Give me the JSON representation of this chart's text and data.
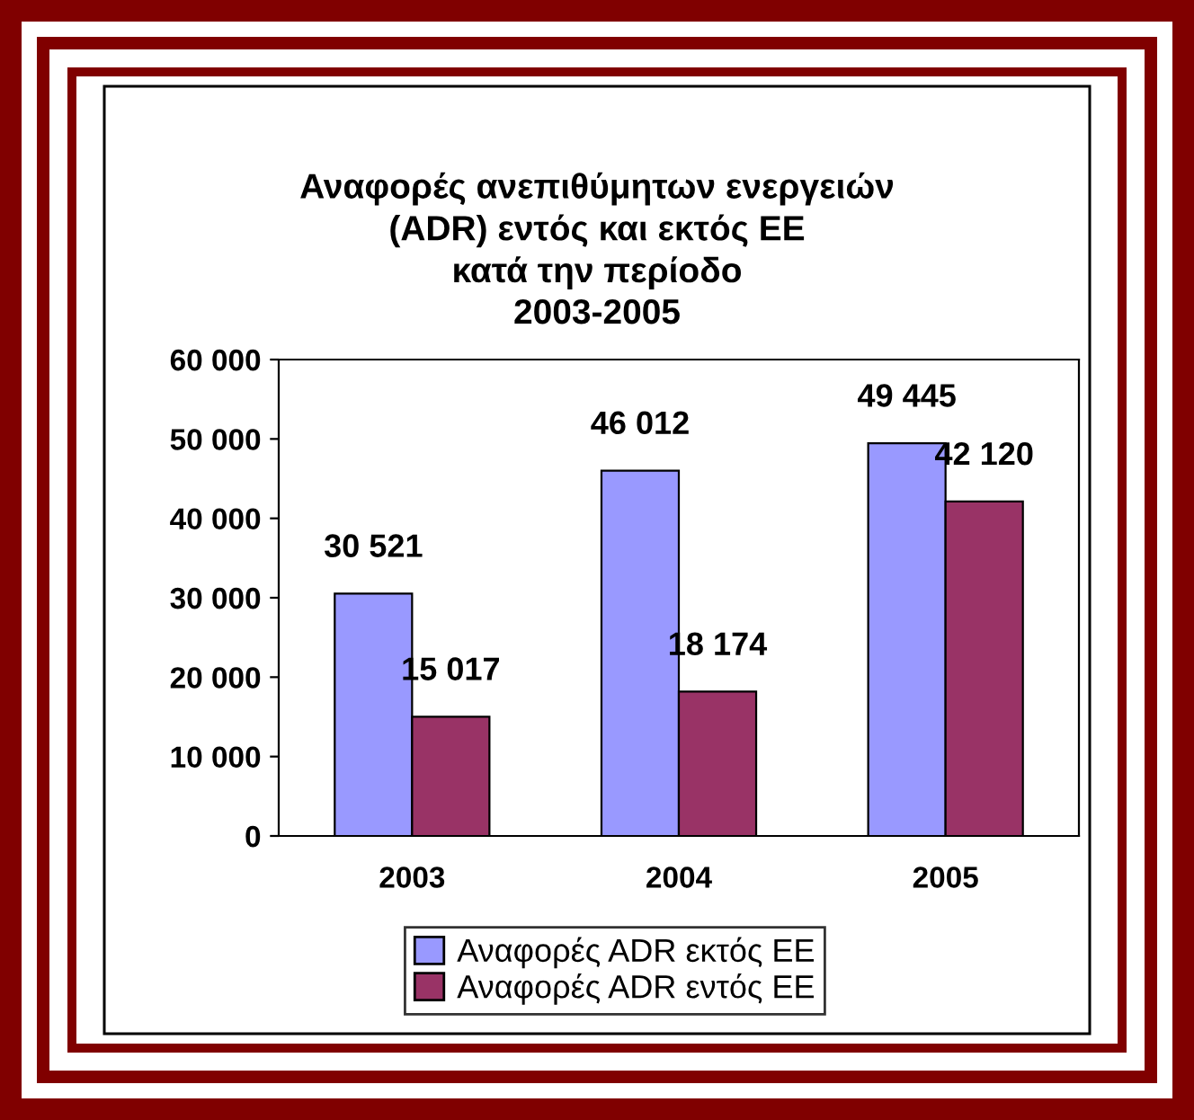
{
  "chart_data": {
    "type": "bar",
    "title": "Αναφορές ανεπιθύμητων ενεργειών\n(ADR) εντός και εκτός ΕΕ\nκατά την περίοδο\n2003-2005",
    "categories": [
      "2003",
      "2004",
      "2005"
    ],
    "series": [
      {
        "name": "Αναφορές ADR εκτός ΕΕ",
        "color": "#9999ff",
        "values": [
          30521,
          46012,
          49445
        ],
        "value_labels": [
          "30 521",
          "46 012",
          "49 445"
        ]
      },
      {
        "name": "Αναφορές ADR εντός ΕΕ",
        "color": "#993366",
        "values": [
          15017,
          18174,
          42120
        ],
        "value_labels": [
          "15 017",
          "18 174",
          "42 120"
        ]
      }
    ],
    "ylim": [
      0,
      60000
    ],
    "yticks": [
      {
        "value": 0,
        "label": "0"
      },
      {
        "value": 10000,
        "label": "10 000"
      },
      {
        "value": 20000,
        "label": "20 000"
      },
      {
        "value": 30000,
        "label": "30 000"
      },
      {
        "value": 40000,
        "label": "40 000"
      },
      {
        "value": 50000,
        "label": "50 000"
      },
      {
        "value": 60000,
        "label": "60 000"
      }
    ],
    "grid": false,
    "legend": "bottom"
  }
}
